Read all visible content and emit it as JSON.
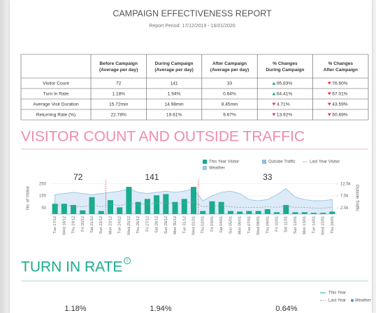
{
  "header": {
    "title": "CAMPAIGN EFFECTIVENESS REPORT",
    "subtitle": "Report Period: 17/12/2019 - 16/01/2020"
  },
  "table": {
    "columns": [
      [
        "Before Campaign",
        "(Average per day)"
      ],
      [
        "During Campaign",
        "(Average per day)"
      ],
      [
        "After Campaign",
        "(Average per day)"
      ],
      [
        "% Changes",
        "During Campaign"
      ],
      [
        "% Changes",
        "After Campaign"
      ]
    ],
    "rows": [
      {
        "label": "Visitor Count",
        "cells": [
          "72",
          "141",
          "33"
        ],
        "changes": [
          {
            "dir": "up",
            "text": "95.83%"
          },
          {
            "dir": "down",
            "text": "76.60%"
          }
        ]
      },
      {
        "label": "Turn In Rate",
        "cells": [
          "1.18%",
          "1.94%",
          "0.64%"
        ],
        "changes": [
          {
            "dir": "up",
            "text": "64.41%"
          },
          {
            "dir": "down",
            "text": "67.01%"
          }
        ]
      },
      {
        "label": "Average Visit Duration",
        "cells": [
          "15.72min",
          "14.98min",
          "8.45min"
        ],
        "changes": [
          {
            "dir": "down",
            "text": "4.71%"
          },
          {
            "dir": "down",
            "text": "43.59%"
          }
        ]
      },
      {
        "label": "Returning Rate (%)",
        "cells": [
          "22.78%",
          "19.61%",
          "9.67%"
        ],
        "changes": [
          {
            "dir": "down",
            "text": "13.92%"
          },
          {
            "dir": "down",
            "text": "50.69%"
          }
        ]
      }
    ]
  },
  "visitor_section": {
    "title": "VISITOR COUNT AND OUTSIDE TRAFFIC"
  },
  "chart_data": {
    "type": "bar",
    "categories": [
      "Tue 17/12",
      "Wed 18/12",
      "Thu 19/12",
      "Fri 20/12",
      "Sat 21/12",
      "Sun 22/12",
      "Mon 23/12",
      "Tue 24/12",
      "Wed 25/12",
      "Thu 26/12",
      "Fri 27/12",
      "Sat 28/12",
      "Sun 29/12",
      "Mon 30/12",
      "Tue 31/12",
      "Wed 01/01",
      "Thu 02/01",
      "Fri 03/01",
      "Sat 04/01",
      "Sun 05/01",
      "Mon 06/01",
      "Tue 07/01",
      "Wed 08/01",
      "Thu 09/01",
      "Fri 10/01",
      "Sat 11/01",
      "Sun 12/01",
      "Mon 13/01",
      "Tue 14/01",
      "Wed 15/01",
      "Thu 16/01"
    ],
    "series": [
      {
        "name": "This Year Visitor",
        "color": "#1aab8e",
        "values": [
          85,
          85,
          75,
          30,
          140,
          25,
          115,
          55,
          225,
          100,
          125,
          155,
          165,
          100,
          125,
          225,
          25,
          105,
          100,
          25,
          20,
          25,
          25,
          40,
          15,
          75,
          15,
          15,
          10,
          10,
          20
        ]
      },
      {
        "name": "Outside Traffic",
        "color": "#8fbde0",
        "axis": "y2",
        "values": [
          8000,
          8500,
          9000,
          8500,
          8000,
          8500,
          9000,
          9500,
          10500,
          9000,
          8500,
          9000,
          9500,
          9000,
          9500,
          10500,
          5500,
          7500,
          9000,
          9500,
          8500,
          6000,
          5500,
          6000,
          8000,
          10500,
          7000,
          6000,
          5500,
          5500,
          6000
        ]
      },
      {
        "name": "Last Year Visitor",
        "color": "#8898a8",
        "values": [
          70,
          70,
          65,
          60,
          75,
          60,
          80,
          70,
          90,
          80,
          85,
          90,
          95,
          85,
          90,
          100,
          60,
          65,
          70,
          60,
          55,
          55,
          55,
          60,
          55,
          65,
          55,
          55,
          50,
          50,
          55
        ]
      }
    ],
    "legend_only": [
      {
        "name": "Weather",
        "color": "#9ec5ea"
      }
    ],
    "phase_averages": [
      "72",
      "141",
      "33"
    ],
    "phase_breaks": [
      6,
      16
    ],
    "ylabel": "No. of Visitor",
    "y2label": "Outside Traffic",
    "ylim": [
      0,
      260
    ],
    "yticks": [
      50,
      150,
      250
    ],
    "y2lim": [
      0,
      13000
    ],
    "y2ticks": [
      {
        "value": 2500,
        "label": "2.5k"
      },
      {
        "value": 7500,
        "label": "7.5k"
      },
      {
        "value": 12500,
        "label": "12.5k"
      }
    ]
  },
  "turn_section": {
    "title": "TURN IN RATE",
    "legend": [
      "This Year",
      "Last Year",
      "Weather"
    ],
    "values": [
      "1.18%",
      "1.94%",
      "0.64%"
    ]
  }
}
